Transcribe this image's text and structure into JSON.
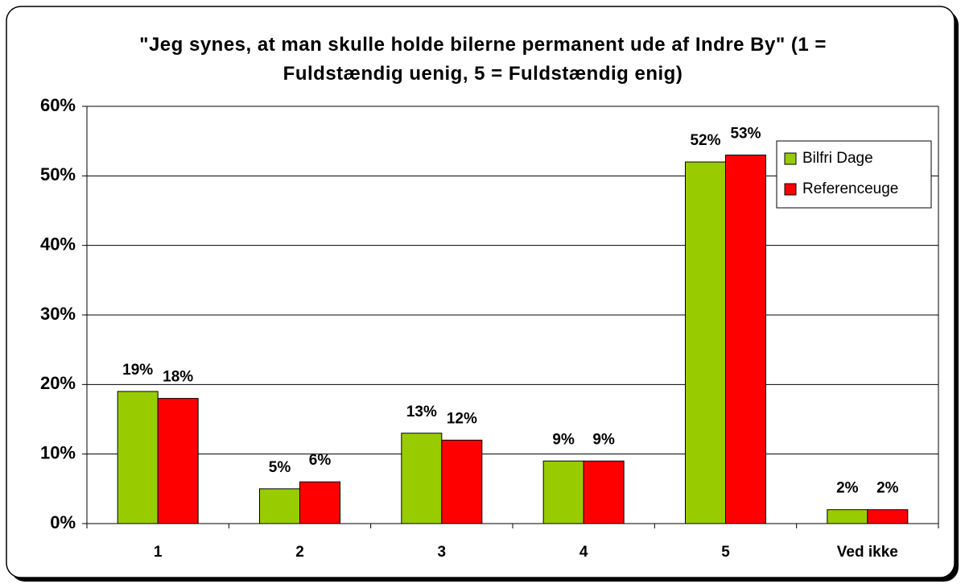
{
  "chart_data": {
    "type": "bar",
    "title": "\"Jeg synes, at man skulle holde bilerne permanent ude af Indre By\" (1 = Fuldstændig uenig, 5 = Fuldstændig enig)",
    "categories": [
      "1",
      "2",
      "3",
      "4",
      "5",
      "Ved ikke"
    ],
    "series": [
      {
        "name": "Bilfri Dage",
        "color": "#99cc00",
        "values": [
          19,
          5,
          13,
          9,
          52,
          2
        ],
        "value_labels": [
          "19%",
          "5%",
          "13%",
          "9%",
          "52%",
          "2%"
        ]
      },
      {
        "name": "Referenceuge",
        "color": "#ff0000",
        "values": [
          18,
          6,
          12,
          9,
          53,
          2
        ],
        "value_labels": [
          "18%",
          "6%",
          "12%",
          "9%",
          "53%",
          "2%"
        ]
      }
    ],
    "ylim": [
      0,
      60
    ],
    "yticks": [
      {
        "value": 0,
        "label": "0%"
      },
      {
        "value": 10,
        "label": "10%"
      },
      {
        "value": 20,
        "label": "20%"
      },
      {
        "value": 30,
        "label": "30%"
      },
      {
        "value": 40,
        "label": "40%"
      },
      {
        "value": 50,
        "label": "50%"
      },
      {
        "value": 60,
        "label": "60%"
      }
    ],
    "grid": true,
    "legend": "right"
  }
}
